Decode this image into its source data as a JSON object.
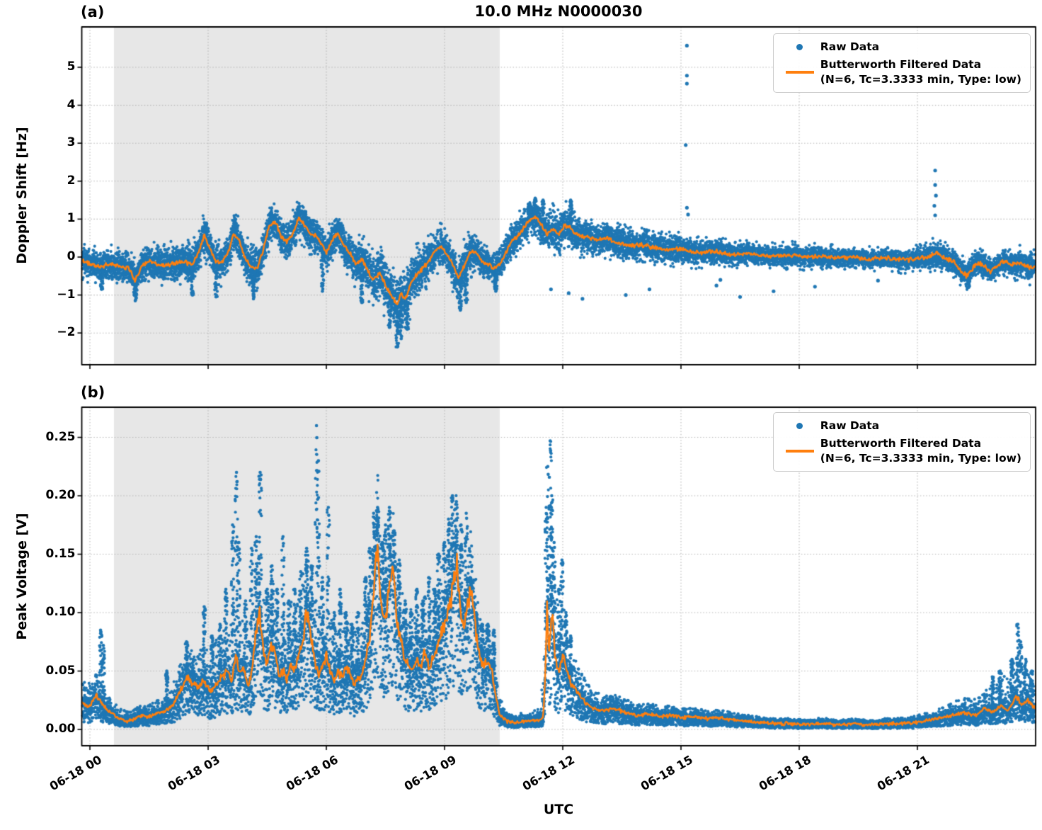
{
  "figure": {
    "title": "10.0 MHz N0000030",
    "xlabel": "UTC"
  },
  "colors": {
    "raw": "#1f77b4",
    "filtered": "#ff7f0e",
    "shade": "#e7e7e7",
    "grid": "#b4b4b4",
    "frame": "#000000"
  },
  "legend": {
    "raw_label": "Raw Data",
    "filtered_label_line1": "Butterworth Filtered Data",
    "filtered_label_line2": "(N=6, Tc=3.3333 min, Type: low)"
  },
  "chart_data": [
    {
      "type": "scatter",
      "panel_label": "(a)",
      "ylabel": "Doppler Shift [Hz]",
      "ylim": [
        -2.836,
        6.063
      ],
      "yticks": [
        -2,
        -1,
        0,
        1,
        2,
        3,
        4,
        5
      ],
      "ytick_labels": [
        "−2",
        "−1",
        "0",
        "1",
        "2",
        "3",
        "4",
        "5"
      ],
      "xlim_hours": [
        -0.207,
        24.0
      ],
      "xtick_hours": [
        0,
        3,
        6,
        9,
        12,
        15,
        18,
        21
      ],
      "xtick_labels": [
        "06-18 00",
        "06-18 03",
        "06-18 06",
        "06-18 09",
        "06-18 12",
        "06-18 15",
        "06-18 18",
        "06-18 21"
      ],
      "shaded_region_hours": [
        0.61,
        10.4
      ],
      "series": [
        {
          "name": "Raw Data",
          "style": "scatter"
        },
        {
          "name": "Butterworth Filtered Data (N=6, Tc=3.3333 min, Type: low)",
          "style": "line"
        }
      ],
      "filtered_t": [
        -0.2,
        0.2,
        0.5,
        0.8,
        1.0,
        1.15,
        1.3,
        1.5,
        1.8,
        2.1,
        2.4,
        2.6,
        2.75,
        2.9,
        3.05,
        3.2,
        3.35,
        3.5,
        3.65,
        3.8,
        3.95,
        4.1,
        4.25,
        4.4,
        4.55,
        4.7,
        4.85,
        5.0,
        5.15,
        5.3,
        5.45,
        5.6,
        5.75,
        5.9,
        6.0,
        6.15,
        6.3,
        6.45,
        6.6,
        6.75,
        6.9,
        7.05,
        7.2,
        7.35,
        7.5,
        7.65,
        7.8,
        7.9,
        8.0,
        8.15,
        8.3,
        8.45,
        8.6,
        8.75,
        8.9,
        9.05,
        9.2,
        9.35,
        9.5,
        9.65,
        9.8,
        9.95,
        10.1,
        10.25,
        10.4,
        10.55,
        10.7,
        10.85,
        11.0,
        11.15,
        11.3,
        11.45,
        11.6,
        11.75,
        11.9,
        12.05,
        12.2,
        12.35,
        12.5,
        12.7,
        12.9,
        13.1,
        13.3,
        13.5,
        13.75,
        14.0,
        14.3,
        14.6,
        14.9,
        15.2,
        15.5,
        15.8,
        16.1,
        16.4,
        16.7,
        17.0,
        17.4,
        17.8,
        18.2,
        18.6,
        19.0,
        19.4,
        19.8,
        20.2,
        20.6,
        21.0,
        21.3,
        21.5,
        21.7,
        21.9,
        22.1,
        22.25,
        22.4,
        22.55,
        22.7,
        22.85,
        23.0,
        23.2,
        23.4,
        23.6,
        23.8,
        24.0
      ],
      "filtered_v": [
        -0.1,
        -0.25,
        -0.2,
        -0.25,
        -0.3,
        -0.62,
        -0.25,
        -0.12,
        -0.22,
        -0.18,
        -0.12,
        -0.2,
        0.1,
        0.58,
        0.2,
        -0.12,
        -0.15,
        0.1,
        0.62,
        0.4,
        -0.05,
        -0.28,
        -0.3,
        0.2,
        0.83,
        0.95,
        0.55,
        0.42,
        0.6,
        1.02,
        0.85,
        0.6,
        0.55,
        0.3,
        0.12,
        0.45,
        0.62,
        0.3,
        0.1,
        -0.2,
        -0.05,
        -0.35,
        -0.6,
        -0.4,
        -0.75,
        -1.0,
        -1.25,
        -0.95,
        -1.1,
        -0.7,
        -0.45,
        -0.3,
        -0.1,
        0.15,
        0.3,
        0.1,
        -0.2,
        -0.55,
        -0.25,
        0.15,
        0.12,
        -0.1,
        -0.2,
        -0.32,
        -0.2,
        0.1,
        0.42,
        0.55,
        0.75,
        1.0,
        1.05,
        0.85,
        0.6,
        0.75,
        0.58,
        0.85,
        0.75,
        0.6,
        0.55,
        0.5,
        0.45,
        0.5,
        0.4,
        0.35,
        0.3,
        0.32,
        0.25,
        0.2,
        0.22,
        0.15,
        0.12,
        0.15,
        0.1,
        0.05,
        0.1,
        0.05,
        0.02,
        0.05,
        0.0,
        0.02,
        -0.02,
        0.0,
        -0.05,
        -0.02,
        -0.08,
        -0.05,
        0.02,
        0.1,
        -0.05,
        -0.1,
        -0.35,
        -0.5,
        -0.3,
        -0.15,
        -0.25,
        -0.4,
        -0.25,
        -0.1,
        -0.2,
        -0.15,
        -0.25,
        -0.3
      ],
      "band_t": [
        -0.2,
        1,
        2,
        3,
        4,
        5,
        6,
        7,
        7.8,
        8.5,
        9,
        9.5,
        10,
        10.5,
        11,
        11.5,
        12,
        13,
        14,
        15,
        16,
        17,
        18,
        19,
        20,
        21,
        21.5,
        22,
        23,
        23.5,
        24
      ],
      "band_halfwidth": [
        0.28,
        0.3,
        0.33,
        0.35,
        0.35,
        0.35,
        0.33,
        0.4,
        0.55,
        0.4,
        0.35,
        0.42,
        0.3,
        0.3,
        0.33,
        0.38,
        0.35,
        0.3,
        0.28,
        0.25,
        0.22,
        0.2,
        0.2,
        0.18,
        0.18,
        0.2,
        0.26,
        0.24,
        0.22,
        0.25,
        0.28
      ],
      "raw_spike_columns": [
        [
          1.15,
          -1.15
        ],
        [
          2.6,
          -1.0
        ],
        [
          3.2,
          -1.05
        ],
        [
          4.15,
          -1.1
        ],
        [
          5.9,
          -0.9
        ],
        [
          6.9,
          -1.2
        ],
        [
          7.6,
          -1.85
        ],
        [
          7.8,
          -2.37
        ],
        [
          7.9,
          -2.15
        ],
        [
          8.05,
          -1.9
        ],
        [
          9.4,
          -1.4
        ],
        [
          9.55,
          -1.2
        ],
        [
          10.3,
          -0.9
        ],
        [
          2.95,
          0.9
        ],
        [
          3.68,
          1.0
        ],
        [
          4.6,
          1.15
        ],
        [
          5.3,
          1.25
        ],
        [
          5.45,
          1.2
        ],
        [
          6.3,
          0.85
        ],
        [
          11.15,
          1.4
        ],
        [
          11.3,
          1.55
        ],
        [
          11.5,
          1.5
        ],
        [
          12.2,
          1.5
        ],
        [
          0.3,
          -0.85
        ],
        [
          22.3,
          -0.8
        ]
      ],
      "raw_outliers": [
        [
          15.15,
          5.57
        ],
        [
          15.15,
          4.78
        ],
        [
          15.15,
          4.57
        ],
        [
          15.12,
          2.95
        ],
        [
          15.15,
          1.3
        ],
        [
          15.18,
          1.12
        ],
        [
          21.45,
          2.28
        ],
        [
          21.45,
          1.9
        ],
        [
          21.47,
          1.62
        ],
        [
          21.43,
          1.35
        ],
        [
          21.45,
          1.1
        ],
        [
          12.15,
          -0.95
        ],
        [
          12.5,
          -1.1
        ],
        [
          13.6,
          -1.0
        ],
        [
          14.2,
          -0.85
        ],
        [
          15.9,
          -0.75
        ],
        [
          16.5,
          -1.05
        ],
        [
          17.35,
          -0.9
        ],
        [
          18.4,
          -0.78
        ],
        [
          20.0,
          -0.62
        ],
        [
          11.7,
          -0.85
        ],
        [
          16.0,
          -0.6
        ]
      ]
    },
    {
      "type": "scatter",
      "panel_label": "(b)",
      "ylabel": "Peak Voltage [V]",
      "ylim": [
        -0.0139,
        0.2758
      ],
      "yticks": [
        0.0,
        0.05,
        0.1,
        0.15,
        0.2,
        0.25
      ],
      "ytick_labels": [
        "0.00",
        "0.05",
        "0.10",
        "0.15",
        "0.20",
        "0.25"
      ],
      "xlim_hours": [
        -0.207,
        24.0
      ],
      "xtick_hours": [
        0,
        3,
        6,
        9,
        12,
        15,
        18,
        21
      ],
      "xtick_labels": [
        "06-18 00",
        "06-18 03",
        "06-18 06",
        "06-18 09",
        "06-18 12",
        "06-18 15",
        "06-18 18",
        "06-18 21"
      ],
      "shaded_region_hours": [
        0.61,
        10.4
      ],
      "series": [
        {
          "name": "Raw Data",
          "style": "scatter"
        },
        {
          "name": "Butterworth Filtered Data (N=6, Tc=3.3333 min, Type: low)",
          "style": "line"
        }
      ],
      "filtered_t": [
        -0.2,
        0.0,
        0.15,
        0.3,
        0.5,
        0.7,
        0.9,
        1.1,
        1.3,
        1.5,
        1.7,
        1.9,
        2.1,
        2.3,
        2.45,
        2.6,
        2.75,
        2.9,
        3.05,
        3.2,
        3.35,
        3.5,
        3.6,
        3.7,
        3.8,
        3.9,
        4.0,
        4.1,
        4.2,
        4.3,
        4.4,
        4.5,
        4.6,
        4.7,
        4.8,
        4.9,
        5.0,
        5.1,
        5.2,
        5.3,
        5.4,
        5.5,
        5.6,
        5.7,
        5.8,
        5.9,
        6.0,
        6.1,
        6.2,
        6.3,
        6.4,
        6.5,
        6.6,
        6.7,
        6.8,
        6.9,
        7.0,
        7.1,
        7.2,
        7.3,
        7.4,
        7.5,
        7.6,
        7.7,
        7.8,
        7.9,
        8.0,
        8.1,
        8.2,
        8.3,
        8.4,
        8.5,
        8.6,
        8.7,
        8.8,
        8.9,
        9.0,
        9.1,
        9.2,
        9.3,
        9.4,
        9.5,
        9.6,
        9.7,
        9.8,
        9.9,
        10.0,
        10.1,
        10.2,
        10.3,
        10.4,
        10.6,
        10.8,
        11.0,
        11.2,
        11.4,
        11.5,
        11.55,
        11.6,
        11.65,
        11.7,
        11.75,
        11.8,
        11.9,
        12.0,
        12.1,
        12.2,
        12.3,
        12.45,
        12.6,
        12.8,
        13.0,
        13.3,
        13.6,
        13.9,
        14.2,
        14.5,
        14.8,
        15.1,
        15.4,
        15.7,
        16.0,
        16.3,
        16.6,
        17.0,
        17.4,
        17.8,
        18.2,
        18.6,
        19.0,
        19.4,
        19.8,
        20.2,
        20.6,
        21.0,
        21.3,
        21.6,
        21.9,
        22.2,
        22.5,
        22.7,
        22.9,
        23.1,
        23.3,
        23.5,
        23.65,
        23.8,
        24.0
      ],
      "filtered_v": [
        0.022,
        0.02,
        0.03,
        0.022,
        0.015,
        0.01,
        0.007,
        0.008,
        0.012,
        0.011,
        0.014,
        0.016,
        0.02,
        0.033,
        0.045,
        0.04,
        0.035,
        0.042,
        0.032,
        0.037,
        0.045,
        0.05,
        0.04,
        0.065,
        0.045,
        0.055,
        0.035,
        0.048,
        0.08,
        0.105,
        0.065,
        0.055,
        0.072,
        0.065,
        0.045,
        0.05,
        0.043,
        0.058,
        0.05,
        0.065,
        0.075,
        0.105,
        0.08,
        0.06,
        0.048,
        0.055,
        0.062,
        0.05,
        0.042,
        0.05,
        0.045,
        0.052,
        0.048,
        0.04,
        0.042,
        0.048,
        0.06,
        0.08,
        0.12,
        0.16,
        0.1,
        0.09,
        0.125,
        0.135,
        0.09,
        0.075,
        0.06,
        0.055,
        0.05,
        0.06,
        0.055,
        0.065,
        0.055,
        0.06,
        0.07,
        0.08,
        0.09,
        0.1,
        0.12,
        0.145,
        0.1,
        0.09,
        0.11,
        0.12,
        0.08,
        0.06,
        0.055,
        0.06,
        0.05,
        0.03,
        0.012,
        0.007,
        0.006,
        0.007,
        0.007,
        0.008,
        0.01,
        0.04,
        0.105,
        0.07,
        0.09,
        0.1,
        0.06,
        0.05,
        0.065,
        0.05,
        0.04,
        0.035,
        0.028,
        0.022,
        0.018,
        0.016,
        0.018,
        0.014,
        0.012,
        0.013,
        0.011,
        0.012,
        0.01,
        0.011,
        0.009,
        0.01,
        0.008,
        0.007,
        0.006,
        0.005,
        0.005,
        0.004,
        0.005,
        0.004,
        0.005,
        0.004,
        0.005,
        0.005,
        0.006,
        0.008,
        0.01,
        0.012,
        0.014,
        0.012,
        0.018,
        0.015,
        0.02,
        0.016,
        0.03,
        0.02,
        0.025,
        0.018
      ],
      "band_t": [
        -0.2,
        0.5,
        1,
        1.5,
        2,
        2.5,
        3,
        3.5,
        4,
        4.5,
        5,
        5.5,
        6,
        6.5,
        7,
        7.5,
        8,
        8.5,
        9,
        9.5,
        10,
        10.35,
        10.6,
        11,
        11.4,
        11.7,
        12,
        12.4,
        12.8,
        13.5,
        14,
        15,
        16,
        17,
        18,
        19,
        20,
        21,
        21.5,
        22,
        22.5,
        23,
        23.5,
        23.8,
        24
      ],
      "band_upper_extent": [
        0.025,
        0.012,
        0.008,
        0.01,
        0.015,
        0.03,
        0.035,
        0.05,
        0.05,
        0.05,
        0.05,
        0.06,
        0.05,
        0.045,
        0.05,
        0.06,
        0.05,
        0.05,
        0.06,
        0.06,
        0.04,
        0.02,
        0.006,
        0.008,
        0.01,
        0.08,
        0.05,
        0.025,
        0.015,
        0.012,
        0.01,
        0.008,
        0.007,
        0.005,
        0.004,
        0.004,
        0.004,
        0.006,
        0.008,
        0.012,
        0.014,
        0.022,
        0.04,
        0.03,
        0.025
      ],
      "raw_spike_columns": [
        [
          0.27,
          0.085
        ],
        [
          0.34,
          0.072
        ],
        [
          1.95,
          0.05
        ],
        [
          2.45,
          0.075
        ],
        [
          2.62,
          0.06
        ],
        [
          2.9,
          0.105
        ],
        [
          3.1,
          0.08
        ],
        [
          3.3,
          0.09
        ],
        [
          3.45,
          0.12
        ],
        [
          3.62,
          0.175
        ],
        [
          3.72,
          0.22
        ],
        [
          3.78,
          0.16
        ],
        [
          3.95,
          0.11
        ],
        [
          4.1,
          0.155
        ],
        [
          4.22,
          0.165
        ],
        [
          4.32,
          0.22
        ],
        [
          4.5,
          0.12
        ],
        [
          4.62,
          0.14
        ],
        [
          4.75,
          0.12
        ],
        [
          4.9,
          0.165
        ],
        [
          5.05,
          0.11
        ],
        [
          5.2,
          0.12
        ],
        [
          5.35,
          0.135
        ],
        [
          5.5,
          0.155
        ],
        [
          5.62,
          0.14
        ],
        [
          5.75,
          0.26
        ],
        [
          5.8,
          0.23
        ],
        [
          5.9,
          0.13
        ],
        [
          6.05,
          0.19
        ],
        [
          6.2,
          0.1
        ],
        [
          6.35,
          0.12
        ],
        [
          6.5,
          0.1
        ],
        [
          6.65,
          0.09
        ],
        [
          6.8,
          0.1
        ],
        [
          7.0,
          0.13
        ],
        [
          7.1,
          0.155
        ],
        [
          7.2,
          0.185
        ],
        [
          7.3,
          0.19
        ],
        [
          7.42,
          0.16
        ],
        [
          7.5,
          0.175
        ],
        [
          7.6,
          0.19
        ],
        [
          7.72,
          0.17
        ],
        [
          7.85,
          0.145
        ],
        [
          8.0,
          0.11
        ],
        [
          8.15,
          0.1
        ],
        [
          8.3,
          0.12
        ],
        [
          8.45,
          0.11
        ],
        [
          8.6,
          0.13
        ],
        [
          8.75,
          0.12
        ],
        [
          8.85,
          0.15
        ],
        [
          9.0,
          0.16
        ],
        [
          9.1,
          0.18
        ],
        [
          9.2,
          0.2
        ],
        [
          9.3,
          0.195
        ],
        [
          9.42,
          0.175
        ],
        [
          9.55,
          0.185
        ],
        [
          9.65,
          0.13
        ],
        [
          9.8,
          0.1
        ],
        [
          9.95,
          0.09
        ],
        [
          10.1,
          0.09
        ],
        [
          10.25,
          0.085
        ],
        [
          11.58,
          0.19
        ],
        [
          11.62,
          0.225
        ],
        [
          11.68,
          0.247
        ],
        [
          11.72,
          0.2
        ],
        [
          11.78,
          0.16
        ],
        [
          11.9,
          0.12
        ],
        [
          11.98,
          0.145
        ],
        [
          12.08,
          0.1
        ],
        [
          12.2,
          0.08
        ],
        [
          22.9,
          0.045
        ],
        [
          23.1,
          0.05
        ],
        [
          23.4,
          0.06
        ],
        [
          23.55,
          0.09
        ],
        [
          23.62,
          0.075
        ],
        [
          23.75,
          0.06
        ],
        [
          23.9,
          0.05
        ]
      ],
      "raw_outliers": []
    }
  ]
}
